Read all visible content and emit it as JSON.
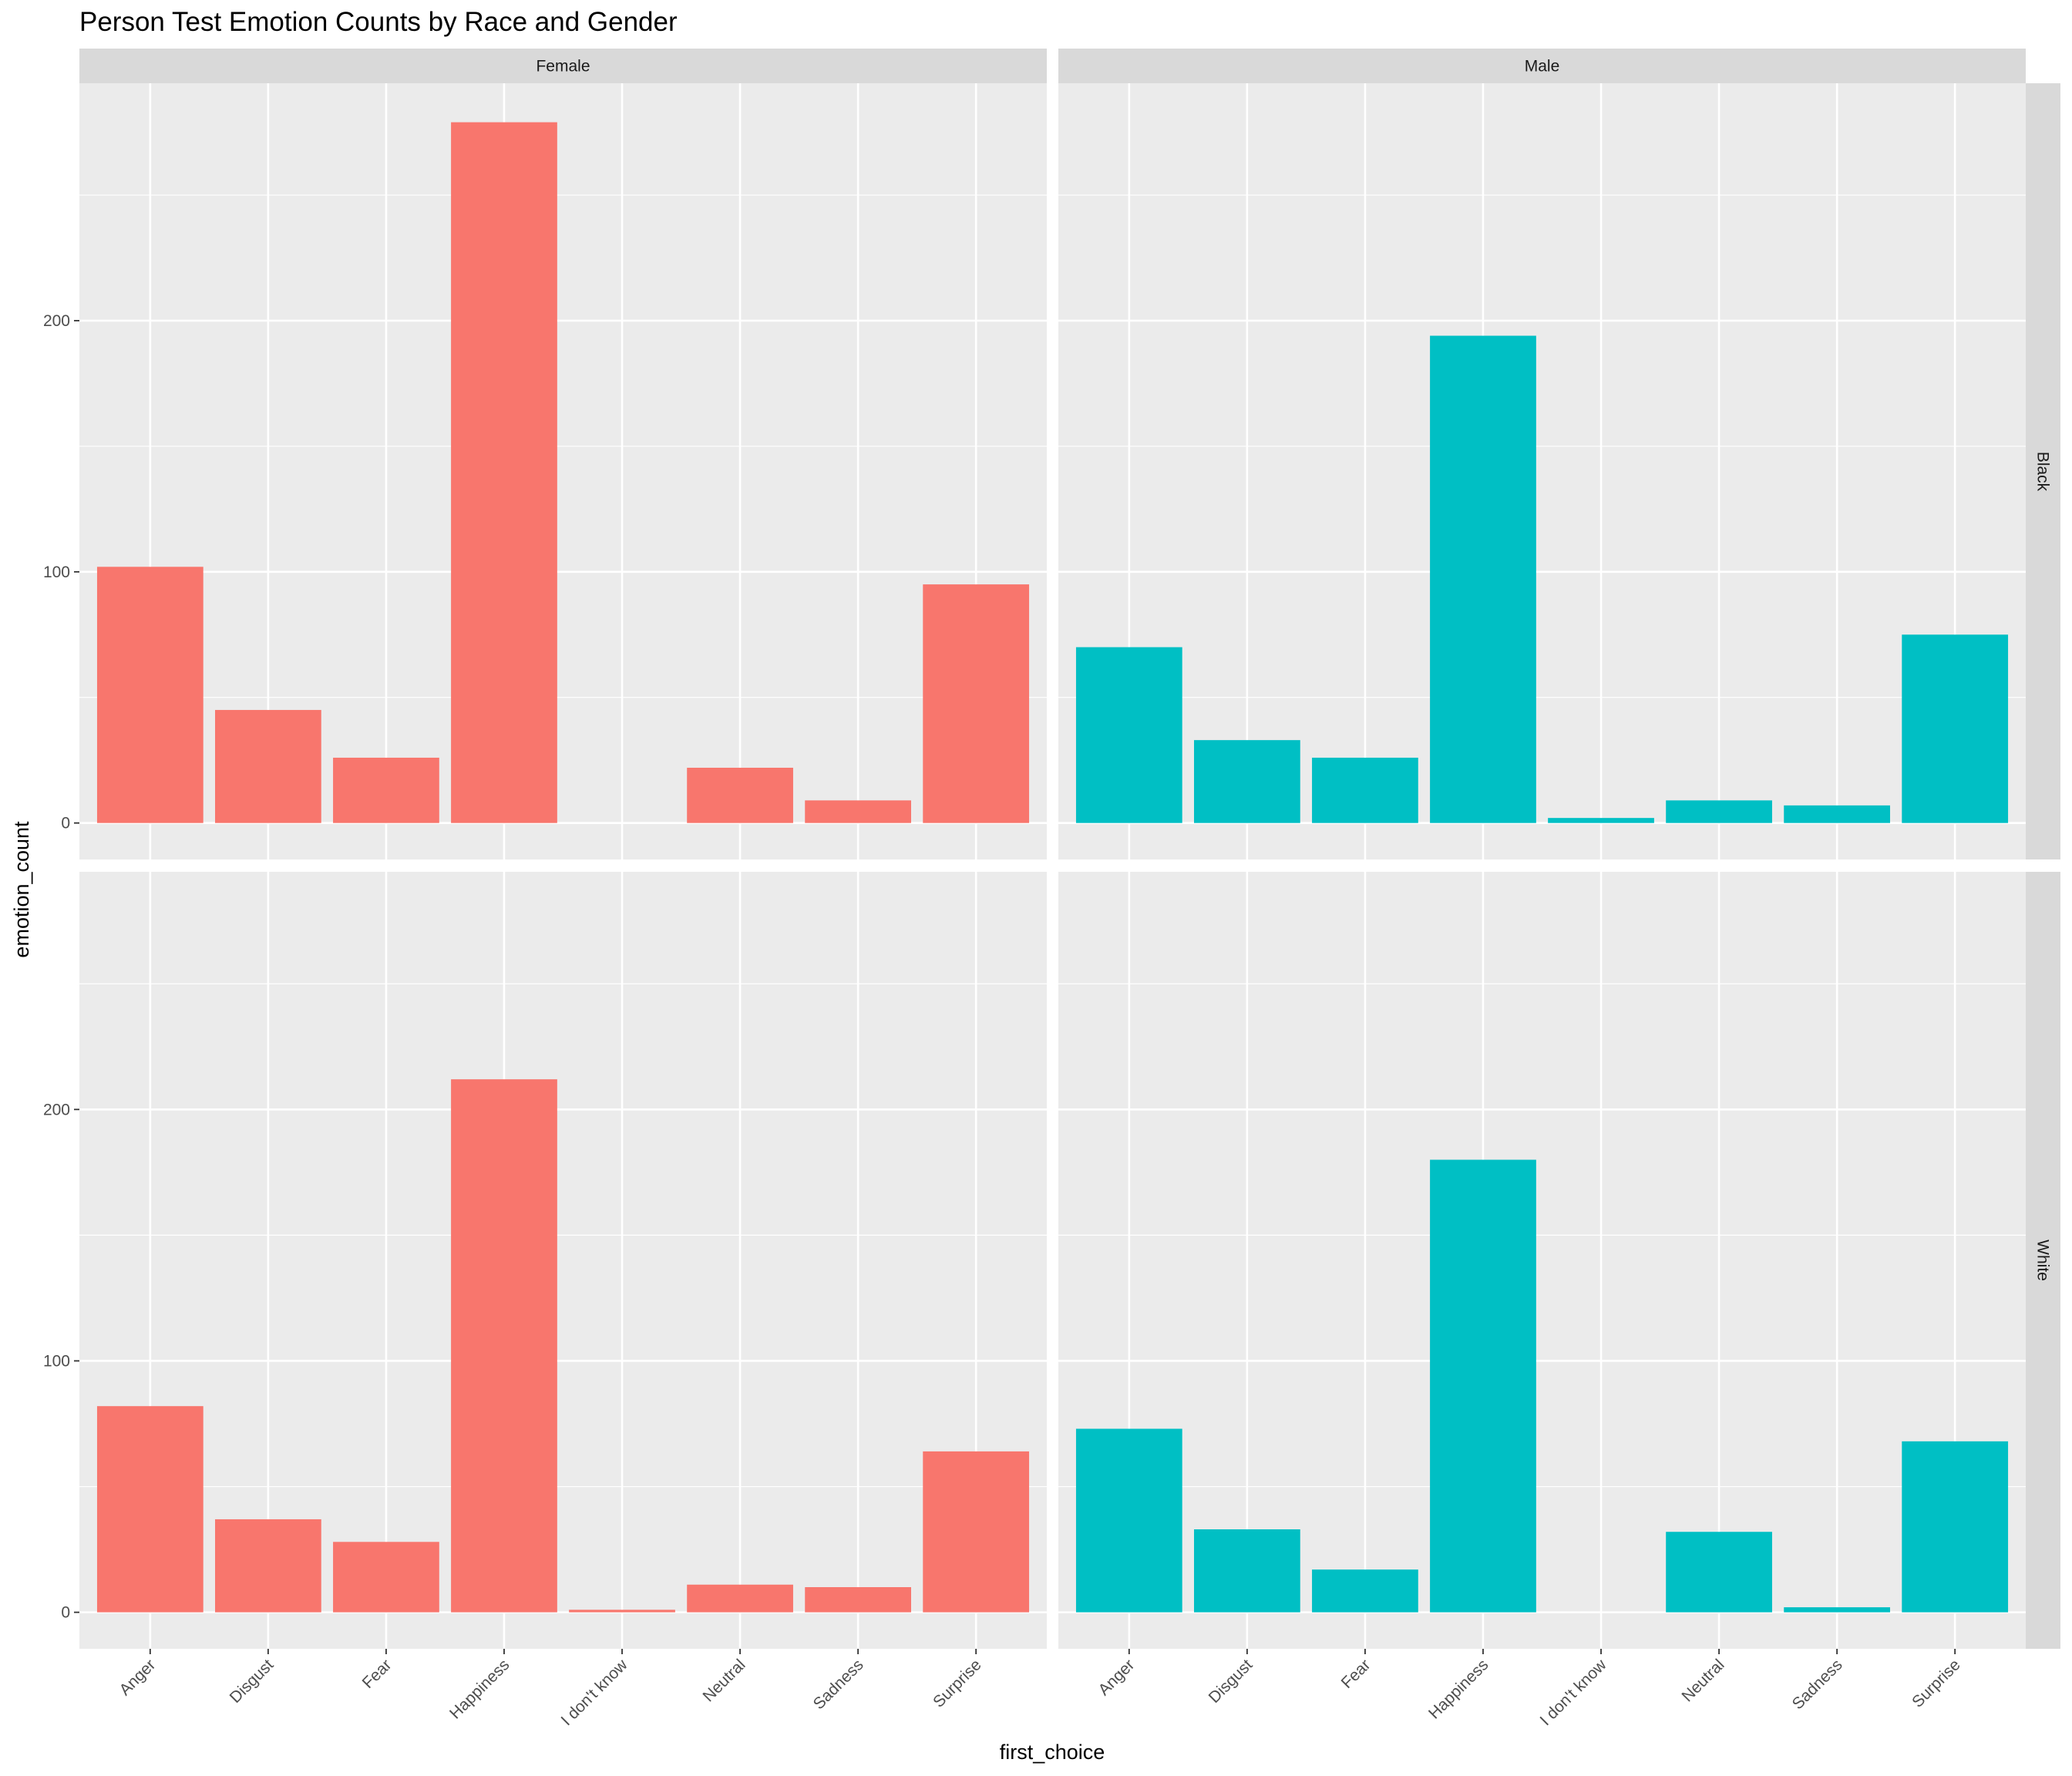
{
  "chart_data": {
    "type": "bar",
    "title": "Person Test Emotion Counts by Race and Gender",
    "xlabel": "first_choice",
    "ylabel": "emotion_count",
    "categories": [
      "Anger",
      "Disgust",
      "Fear",
      "Happiness",
      "I don't know",
      "Neutral",
      "Sadness",
      "Surprise"
    ],
    "ylim": [
      0,
      280
    ],
    "yticks": [
      0,
      100,
      200
    ],
    "legend": "none",
    "facet_columns": [
      "Female",
      "Male"
    ],
    "facet_rows": [
      "Black",
      "White"
    ],
    "colors": {
      "Female": "#F8766D",
      "Male": "#00BFC4"
    },
    "panels": [
      {
        "column": "Female",
        "row": "Black",
        "values": [
          102,
          45,
          26,
          279,
          0,
          22,
          9,
          95
        ]
      },
      {
        "column": "Male",
        "row": "Black",
        "values": [
          70,
          33,
          26,
          194,
          2,
          9,
          7,
          75
        ]
      },
      {
        "column": "Female",
        "row": "White",
        "values": [
          82,
          37,
          28,
          212,
          1,
          11,
          10,
          64
        ]
      },
      {
        "column": "Male",
        "row": "White",
        "values": [
          73,
          33,
          17,
          180,
          0,
          32,
          2,
          68
        ]
      }
    ],
    "grid": true
  }
}
